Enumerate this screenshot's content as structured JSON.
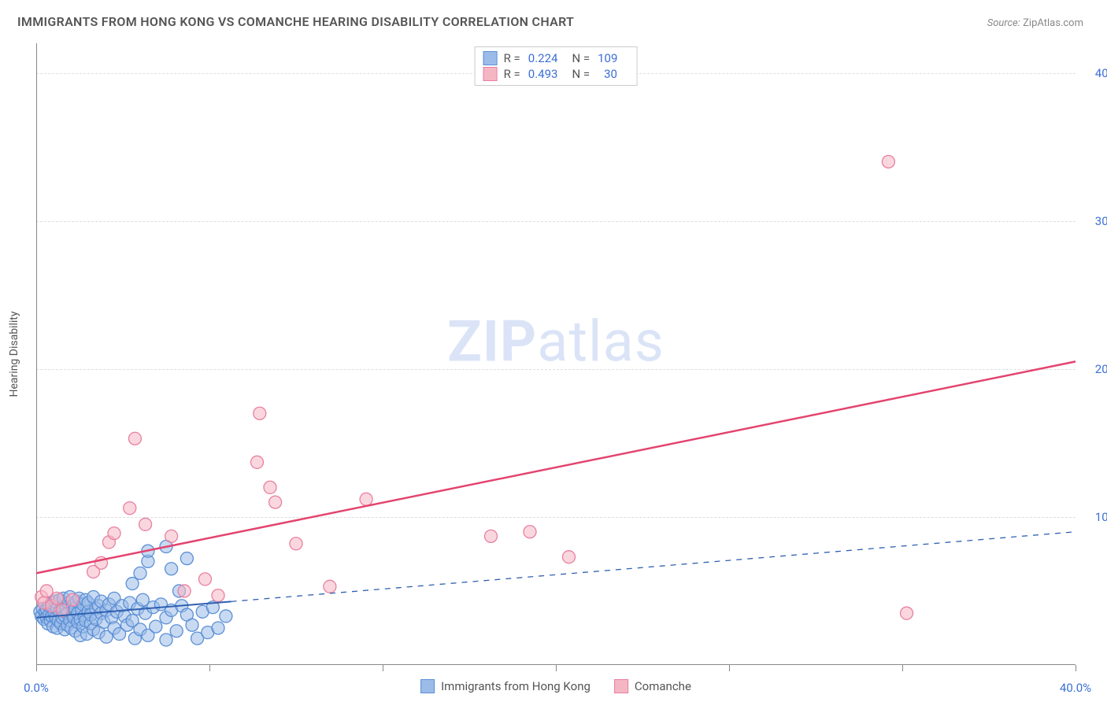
{
  "title": "IMMIGRANTS FROM HONG KONG VS COMANCHE HEARING DISABILITY CORRELATION CHART",
  "source_label": "Source:",
  "source_value": "ZipAtlas.com",
  "watermark_prefix": "ZIP",
  "watermark_suffix": "atlas",
  "y_axis_title": "Hearing Disability",
  "chart": {
    "type": "scatter",
    "xlim": [
      0,
      40
    ],
    "ylim": [
      0,
      42
    ],
    "x_ticks": [
      0,
      6.67,
      13.33,
      20,
      26.67,
      33.33,
      40
    ],
    "x_tick_labels_shown": {
      "0": "0.0%",
      "40": "40.0%"
    },
    "y_ticks": [
      10,
      20,
      30,
      40
    ],
    "y_tick_labels": [
      "10.0%",
      "20.0%",
      "30.0%",
      "40.0%"
    ],
    "grid_color": "#dddddd",
    "axis_color": "#888888",
    "background_color": "#ffffff",
    "series": [
      {
        "key": "hk",
        "label": "Immigrants from Hong Kong",
        "color_fill": "#9bbce8",
        "color_stroke": "#5b8fd6",
        "legend_R": "0.224",
        "legend_N": "109",
        "trend": {
          "x1": 0,
          "y1": 3.2,
          "x2": 40,
          "y2": 9.0,
          "dash_break_x": 7.5,
          "color": "#2f5fb0",
          "width": 2
        },
        "points": [
          [
            0.15,
            3.6
          ],
          [
            0.2,
            3.3
          ],
          [
            0.25,
            3.8
          ],
          [
            0.3,
            3.1
          ],
          [
            0.35,
            3.6
          ],
          [
            0.4,
            3.2
          ],
          [
            0.4,
            3.8
          ],
          [
            0.45,
            2.8
          ],
          [
            0.5,
            3.4
          ],
          [
            0.5,
            4.0
          ],
          [
            0.55,
            3.0
          ],
          [
            0.6,
            3.3
          ],
          [
            0.6,
            4.2
          ],
          [
            0.65,
            2.6
          ],
          [
            0.7,
            3.5
          ],
          [
            0.7,
            4.3
          ],
          [
            0.75,
            3.2
          ],
          [
            0.8,
            3.8
          ],
          [
            0.8,
            2.5
          ],
          [
            0.85,
            3.0
          ],
          [
            0.9,
            3.6
          ],
          [
            0.9,
            4.4
          ],
          [
            0.95,
            2.8
          ],
          [
            1.0,
            3.2
          ],
          [
            1.0,
            3.9
          ],
          [
            1.05,
            4.5
          ],
          [
            1.1,
            2.4
          ],
          [
            1.1,
            3.3
          ],
          [
            1.15,
            3.8
          ],
          [
            1.2,
            2.7
          ],
          [
            1.2,
            3.5
          ],
          [
            1.25,
            4.2
          ],
          [
            1.3,
            3.0
          ],
          [
            1.3,
            4.6
          ],
          [
            1.35,
            2.5
          ],
          [
            1.4,
            3.4
          ],
          [
            1.4,
            4.0
          ],
          [
            1.45,
            3.2
          ],
          [
            1.5,
            2.3
          ],
          [
            1.5,
            3.8
          ],
          [
            1.55,
            4.3
          ],
          [
            1.6,
            2.9
          ],
          [
            1.6,
            3.5
          ],
          [
            1.65,
            4.5
          ],
          [
            1.7,
            3.1
          ],
          [
            1.7,
            2.0
          ],
          [
            1.75,
            3.7
          ],
          [
            1.8,
            4.1
          ],
          [
            1.8,
            2.6
          ],
          [
            1.85,
            3.3
          ],
          [
            1.9,
            4.4
          ],
          [
            1.9,
            3.0
          ],
          [
            1.95,
            2.1
          ],
          [
            2.0,
            3.6
          ],
          [
            2.0,
            4.2
          ],
          [
            2.1,
            2.8
          ],
          [
            2.1,
            3.4
          ],
          [
            2.2,
            4.6
          ],
          [
            2.2,
            2.4
          ],
          [
            2.3,
            3.8
          ],
          [
            2.3,
            3.1
          ],
          [
            2.4,
            4.0
          ],
          [
            2.4,
            2.2
          ],
          [
            2.5,
            3.5
          ],
          [
            2.5,
            4.3
          ],
          [
            2.6,
            2.9
          ],
          [
            2.7,
            3.7
          ],
          [
            2.7,
            1.9
          ],
          [
            2.8,
            4.1
          ],
          [
            2.9,
            3.2
          ],
          [
            3.0,
            2.5
          ],
          [
            3.0,
            4.5
          ],
          [
            3.1,
            3.6
          ],
          [
            3.2,
            2.1
          ],
          [
            3.3,
            4.0
          ],
          [
            3.4,
            3.3
          ],
          [
            3.5,
            2.7
          ],
          [
            3.6,
            4.2
          ],
          [
            3.7,
            3.0
          ],
          [
            3.8,
            1.8
          ],
          [
            3.9,
            3.8
          ],
          [
            4.0,
            2.4
          ],
          [
            4.1,
            4.4
          ],
          [
            4.2,
            3.5
          ],
          [
            4.3,
            2.0
          ],
          [
            4.5,
            3.9
          ],
          [
            4.6,
            2.6
          ],
          [
            4.8,
            4.1
          ],
          [
            5.0,
            3.2
          ],
          [
            5.0,
            1.7
          ],
          [
            5.2,
            3.7
          ],
          [
            5.4,
            2.3
          ],
          [
            5.6,
            4.0
          ],
          [
            5.8,
            3.4
          ],
          [
            6.0,
            2.7
          ],
          [
            6.2,
            1.8
          ],
          [
            6.4,
            3.6
          ],
          [
            6.6,
            2.2
          ],
          [
            6.8,
            3.9
          ],
          [
            7.0,
            2.5
          ],
          [
            7.3,
            3.3
          ],
          [
            4.0,
            6.2
          ],
          [
            4.3,
            7.0
          ],
          [
            4.3,
            7.7
          ],
          [
            5.5,
            5.0
          ],
          [
            5.2,
            6.5
          ],
          [
            5.0,
            8.0
          ],
          [
            3.7,
            5.5
          ],
          [
            5.8,
            7.2
          ]
        ]
      },
      {
        "key": "comanche",
        "label": "Comanche",
        "color_fill": "#f5b6c4",
        "color_stroke": "#e97fa0",
        "legend_R": "0.493",
        "legend_N": "30",
        "trend": {
          "x1": 0,
          "y1": 6.2,
          "x2": 40,
          "y2": 20.5,
          "color": "#e3446f",
          "width": 2.5
        },
        "points": [
          [
            0.2,
            4.6
          ],
          [
            0.3,
            4.2
          ],
          [
            0.4,
            5.0
          ],
          [
            0.6,
            4.0
          ],
          [
            0.8,
            4.5
          ],
          [
            1.0,
            3.7
          ],
          [
            1.4,
            4.4
          ],
          [
            2.2,
            6.3
          ],
          [
            2.5,
            6.9
          ],
          [
            2.8,
            8.3
          ],
          [
            3.0,
            8.9
          ],
          [
            3.6,
            10.6
          ],
          [
            3.8,
            15.3
          ],
          [
            4.2,
            9.5
          ],
          [
            5.2,
            8.7
          ],
          [
            5.7,
            5.0
          ],
          [
            7.0,
            4.7
          ],
          [
            8.5,
            13.7
          ],
          [
            8.6,
            17.0
          ],
          [
            9.0,
            12.0
          ],
          [
            9.2,
            11.0
          ],
          [
            10.0,
            8.2
          ],
          [
            11.3,
            5.3
          ],
          [
            12.7,
            11.2
          ],
          [
            17.5,
            8.7
          ],
          [
            19.0,
            9.0
          ],
          [
            20.5,
            7.3
          ],
          [
            32.8,
            34.0
          ],
          [
            33.5,
            3.5
          ],
          [
            6.5,
            5.8
          ]
        ]
      }
    ]
  }
}
